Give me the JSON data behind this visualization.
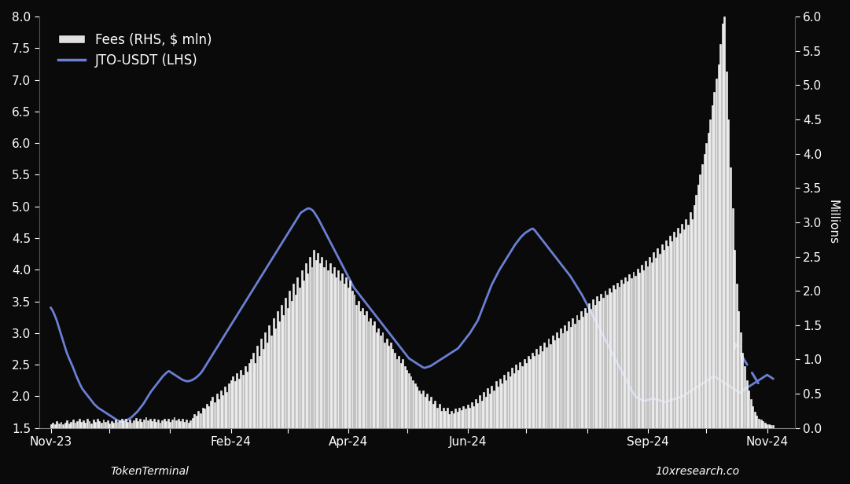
{
  "background_color": "#0a0a0a",
  "text_color": "#ffffff",
  "lhs_label": "JTO-USDT (LHS)",
  "rhs_label": "Fees (RHS, $ mln)",
  "rhs_axis_label": "Millions",
  "source_left": "TokenTerminal",
  "source_right": "10xresearch.co",
  "lhs_ylim": [
    1.5,
    8.0
  ],
  "rhs_ylim": [
    0.0,
    6.0
  ],
  "line_color": "#6b7fd4",
  "bar_facecolor": "#e8e8e8",
  "bar_edgecolor": "#ffffff",
  "dashed_arrow_color": "#6b7fd4",
  "price_data": [
    3.4,
    3.35,
    3.28,
    3.2,
    3.1,
    3.0,
    2.9,
    2.8,
    2.7,
    2.62,
    2.55,
    2.48,
    2.4,
    2.32,
    2.25,
    2.18,
    2.12,
    2.08,
    2.04,
    2.0,
    1.96,
    1.92,
    1.88,
    1.85,
    1.82,
    1.8,
    1.78,
    1.76,
    1.74,
    1.72,
    1.7,
    1.68,
    1.66,
    1.64,
    1.62,
    1.61,
    1.6,
    1.61,
    1.62,
    1.63,
    1.65,
    1.67,
    1.7,
    1.73,
    1.76,
    1.8,
    1.84,
    1.88,
    1.93,
    1.98,
    2.03,
    2.08,
    2.12,
    2.16,
    2.2,
    2.24,
    2.28,
    2.32,
    2.35,
    2.38,
    2.4,
    2.38,
    2.36,
    2.34,
    2.32,
    2.3,
    2.28,
    2.26,
    2.25,
    2.24,
    2.24,
    2.25,
    2.26,
    2.28,
    2.3,
    2.33,
    2.36,
    2.4,
    2.45,
    2.5,
    2.55,
    2.6,
    2.65,
    2.7,
    2.75,
    2.8,
    2.85,
    2.9,
    2.95,
    3.0,
    3.05,
    3.1,
    3.15,
    3.2,
    3.25,
    3.3,
    3.35,
    3.4,
    3.45,
    3.5,
    3.55,
    3.6,
    3.65,
    3.7,
    3.75,
    3.8,
    3.85,
    3.9,
    3.95,
    4.0,
    4.05,
    4.1,
    4.15,
    4.2,
    4.25,
    4.3,
    4.35,
    4.4,
    4.45,
    4.5,
    4.55,
    4.6,
    4.65,
    4.7,
    4.75,
    4.8,
    4.85,
    4.9,
    4.92,
    4.94,
    4.96,
    4.97,
    4.96,
    4.94,
    4.9,
    4.85,
    4.8,
    4.74,
    4.68,
    4.62,
    4.56,
    4.5,
    4.44,
    4.38,
    4.32,
    4.26,
    4.2,
    4.14,
    4.08,
    4.02,
    3.96,
    3.9,
    3.84,
    3.78,
    3.72,
    3.68,
    3.64,
    3.6,
    3.56,
    3.52,
    3.48,
    3.44,
    3.4,
    3.36,
    3.32,
    3.28,
    3.24,
    3.2,
    3.16,
    3.12,
    3.08,
    3.04,
    3.0,
    2.96,
    2.92,
    2.88,
    2.84,
    2.8,
    2.76,
    2.72,
    2.68,
    2.64,
    2.6,
    2.58,
    2.56,
    2.54,
    2.52,
    2.5,
    2.48,
    2.46,
    2.45,
    2.46,
    2.47,
    2.48,
    2.5,
    2.52,
    2.54,
    2.56,
    2.58,
    2.6,
    2.62,
    2.64,
    2.66,
    2.68,
    2.7,
    2.72,
    2.74,
    2.76,
    2.8,
    2.84,
    2.88,
    2.92,
    2.96,
    3.0,
    3.05,
    3.1,
    3.15,
    3.2,
    3.28,
    3.36,
    3.44,
    3.52,
    3.6,
    3.68,
    3.76,
    3.82,
    3.88,
    3.94,
    4.0,
    4.05,
    4.1,
    4.15,
    4.2,
    4.25,
    4.3,
    4.35,
    4.4,
    4.44,
    4.48,
    4.52,
    4.55,
    4.58,
    4.6,
    4.62,
    4.64,
    4.65,
    4.62,
    4.58,
    4.54,
    4.5,
    4.46,
    4.42,
    4.38,
    4.34,
    4.3,
    4.26,
    4.22,
    4.18,
    4.14,
    4.1,
    4.06,
    4.02,
    3.98,
    3.94,
    3.9,
    3.85,
    3.8,
    3.75,
    3.7,
    3.65,
    3.6,
    3.54,
    3.48,
    3.42,
    3.36,
    3.3,
    3.24,
    3.18,
    3.12,
    3.06,
    3.0,
    2.94,
    2.88,
    2.82,
    2.76,
    2.7,
    2.64,
    2.58,
    2.52,
    2.46,
    2.4,
    2.34,
    2.28,
    2.22,
    2.16,
    2.1,
    2.05,
    2.0,
    1.98,
    1.96,
    1.95,
    1.94,
    1.93,
    1.94,
    1.95,
    1.96,
    1.97,
    1.96,
    1.95,
    1.94,
    1.93,
    1.92,
    1.91,
    1.92,
    1.93,
    1.94,
    1.95,
    1.96,
    1.97,
    1.98,
    1.99,
    2.0,
    2.02,
    2.04,
    2.06,
    2.08,
    2.1,
    2.12,
    2.14,
    2.16,
    2.18,
    2.2,
    2.22,
    2.24,
    2.26,
    2.28,
    2.3,
    2.32,
    2.3,
    2.28,
    2.26,
    2.24,
    2.22,
    2.2,
    2.18,
    2.16,
    2.14,
    2.12,
    2.1,
    2.08,
    2.06,
    2.08,
    2.1,
    2.12,
    2.14,
    2.16,
    2.18,
    2.2,
    2.22,
    2.24,
    2.26,
    2.28,
    2.3,
    2.32,
    2.34,
    2.32,
    2.3,
    2.28
  ],
  "fees_data": [
    0.05,
    0.08,
    0.06,
    0.1,
    0.07,
    0.09,
    0.06,
    0.08,
    0.11,
    0.07,
    0.09,
    0.12,
    0.08,
    0.1,
    0.14,
    0.09,
    0.11,
    0.08,
    0.13,
    0.1,
    0.07,
    0.12,
    0.09,
    0.14,
    0.1,
    0.08,
    0.12,
    0.09,
    0.11,
    0.07,
    0.1,
    0.08,
    0.12,
    0.09,
    0.11,
    0.14,
    0.1,
    0.13,
    0.09,
    0.12,
    0.08,
    0.11,
    0.15,
    0.1,
    0.13,
    0.09,
    0.12,
    0.16,
    0.11,
    0.14,
    0.1,
    0.13,
    0.09,
    0.12,
    0.08,
    0.11,
    0.14,
    0.1,
    0.13,
    0.09,
    0.12,
    0.16,
    0.11,
    0.14,
    0.1,
    0.13,
    0.09,
    0.12,
    0.08,
    0.11,
    0.15,
    0.2,
    0.18,
    0.25,
    0.22,
    0.3,
    0.28,
    0.35,
    0.32,
    0.4,
    0.45,
    0.38,
    0.5,
    0.42,
    0.55,
    0.48,
    0.6,
    0.52,
    0.65,
    0.7,
    0.75,
    0.68,
    0.8,
    0.72,
    0.85,
    0.78,
    0.9,
    0.82,
    0.95,
    1.0,
    1.1,
    0.95,
    1.2,
    1.05,
    1.3,
    1.15,
    1.4,
    1.25,
    1.5,
    1.35,
    1.6,
    1.45,
    1.7,
    1.55,
    1.8,
    1.65,
    1.9,
    1.75,
    2.0,
    1.85,
    2.1,
    1.95,
    2.2,
    2.05,
    2.3,
    2.15,
    2.4,
    2.25,
    2.5,
    2.35,
    2.6,
    2.45,
    2.55,
    2.4,
    2.5,
    2.35,
    2.45,
    2.3,
    2.4,
    2.25,
    2.35,
    2.2,
    2.3,
    2.15,
    2.25,
    2.1,
    2.2,
    2.05,
    2.15,
    2.0,
    1.95,
    1.8,
    1.85,
    1.7,
    1.75,
    1.65,
    1.7,
    1.55,
    1.6,
    1.5,
    1.55,
    1.4,
    1.45,
    1.35,
    1.4,
    1.25,
    1.3,
    1.2,
    1.25,
    1.15,
    1.1,
    1.0,
    1.05,
    0.95,
    1.0,
    0.9,
    0.85,
    0.8,
    0.75,
    0.7,
    0.65,
    0.6,
    0.55,
    0.5,
    0.55,
    0.45,
    0.5,
    0.4,
    0.45,
    0.35,
    0.4,
    0.3,
    0.35,
    0.25,
    0.3,
    0.25,
    0.3,
    0.2,
    0.25,
    0.22,
    0.28,
    0.24,
    0.3,
    0.26,
    0.32,
    0.28,
    0.34,
    0.3,
    0.38,
    0.32,
    0.42,
    0.36,
    0.48,
    0.4,
    0.52,
    0.45,
    0.58,
    0.5,
    0.62,
    0.55,
    0.68,
    0.6,
    0.72,
    0.65,
    0.78,
    0.7,
    0.82,
    0.75,
    0.88,
    0.8,
    0.92,
    0.85,
    0.96,
    0.9,
    1.0,
    0.95,
    1.05,
    1.0,
    1.1,
    1.05,
    1.15,
    1.08,
    1.2,
    1.12,
    1.25,
    1.18,
    1.3,
    1.22,
    1.35,
    1.28,
    1.4,
    1.32,
    1.45,
    1.38,
    1.5,
    1.42,
    1.55,
    1.48,
    1.6,
    1.52,
    1.65,
    1.58,
    1.7,
    1.62,
    1.75,
    1.68,
    1.82,
    1.74,
    1.88,
    1.8,
    1.92,
    1.85,
    1.96,
    1.9,
    2.0,
    1.94,
    2.04,
    1.98,
    2.08,
    2.02,
    2.12,
    2.06,
    2.16,
    2.1,
    2.2,
    2.14,
    2.24,
    2.18,
    2.28,
    2.22,
    2.32,
    2.26,
    2.38,
    2.3,
    2.44,
    2.36,
    2.5,
    2.42,
    2.56,
    2.48,
    2.62,
    2.54,
    2.68,
    2.6,
    2.74,
    2.66,
    2.8,
    2.72,
    2.86,
    2.78,
    2.92,
    2.84,
    2.98,
    2.9,
    3.04,
    2.96,
    3.15,
    3.05,
    3.25,
    3.4,
    3.55,
    3.7,
    3.85,
    4.0,
    4.15,
    4.3,
    4.5,
    4.7,
    4.9,
    5.1,
    5.3,
    5.6,
    5.9,
    6.0,
    5.2,
    4.5,
    3.8,
    3.2,
    2.6,
    2.1,
    1.7,
    1.4,
    1.1,
    0.9,
    0.7,
    0.55,
    0.42,
    0.32,
    0.24,
    0.18,
    0.14,
    0.12,
    0.1,
    0.08,
    0.06,
    0.05,
    0.04,
    0.04
  ]
}
